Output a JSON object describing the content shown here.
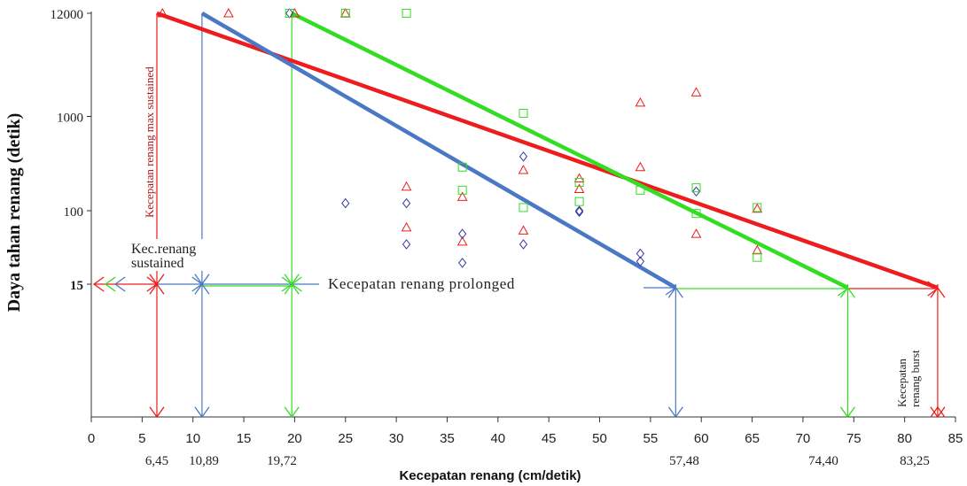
{
  "chart_data": {
    "type": "scatter",
    "xlabel": "Kecepatan renang (cm/detik)",
    "ylabel": "Daya tahan renang (detik)",
    "x_ticks": [
      0,
      5,
      10,
      15,
      20,
      25,
      30,
      35,
      40,
      45,
      50,
      55,
      60,
      65,
      70,
      75,
      80,
      85
    ],
    "y_ticks": [
      "12000",
      "1000",
      "100",
      "15"
    ],
    "xlim": [
      0,
      85
    ],
    "y_scale": "log (upper part), 15 s level set apart below",
    "ylim": [
      15,
      12000
    ],
    "grid": false,
    "threshold_labels": [
      "6,45",
      "10,89",
      "19,72",
      "57,48",
      "74,40",
      "83,25"
    ],
    "annotations": {
      "max_sustained": "Kecepatan renang max sustained",
      "sustained": "Kec.renang sustained",
      "prolonged": "Kecepatan renang prolonged",
      "burst": "Kecepatan renang burst"
    },
    "colors": {
      "red": "#ee1c1c",
      "blue": "#4a78c4",
      "green": "#33dd22",
      "navy": "#3838a8"
    },
    "series": [
      {
        "color": "#ee1c1c",
        "marker": "triangle",
        "points": [
          [
            7,
            12000
          ],
          [
            13.5,
            12000
          ],
          [
            20,
            12000
          ],
          [
            25,
            12000
          ],
          [
            31,
            180
          ],
          [
            31,
            65
          ],
          [
            36.5,
            140
          ],
          [
            36.5,
            45
          ],
          [
            42.5,
            270
          ],
          [
            42.5,
            60
          ],
          [
            48,
            220
          ],
          [
            48,
            170
          ],
          [
            54,
            1400
          ],
          [
            54,
            290
          ],
          [
            59.5,
            1800
          ],
          [
            59.5,
            55
          ],
          [
            65.5,
            105
          ],
          [
            65.5,
            36
          ]
        ],
        "fit_line": [
          [
            6.45,
            12000
          ],
          [
            83.25,
            15
          ]
        ]
      },
      {
        "color": "#3838a8",
        "marker": "diamond",
        "points": [
          [
            19.5,
            12000
          ],
          [
            25,
            120
          ],
          [
            31,
            120
          ],
          [
            31,
            42
          ],
          [
            36.5,
            55
          ],
          [
            36.5,
            26
          ],
          [
            42.5,
            375
          ],
          [
            42.5,
            42
          ],
          [
            48,
            100
          ],
          [
            48,
            97
          ],
          [
            54,
            33
          ],
          [
            54,
            27
          ],
          [
            59.5,
            160
          ]
        ],
        "fit_line": [
          [
            10.89,
            12000
          ],
          [
            57.48,
            15
          ]
        ]
      },
      {
        "color": "#33dd22",
        "marker": "square",
        "points": [
          [
            19.5,
            12000
          ],
          [
            25,
            12000
          ],
          [
            31,
            12000
          ],
          [
            36.5,
            290
          ],
          [
            36.5,
            165
          ],
          [
            42.5,
            1080
          ],
          [
            42.5,
            108
          ],
          [
            48,
            200
          ],
          [
            48,
            125
          ],
          [
            54,
            165
          ],
          [
            59.5,
            175
          ],
          [
            59.5,
            93
          ],
          [
            65.5,
            108
          ],
          [
            65.5,
            30
          ]
        ],
        "fit_line": [
          [
            19.72,
            12000
          ],
          [
            74.4,
            15
          ]
        ]
      }
    ]
  }
}
